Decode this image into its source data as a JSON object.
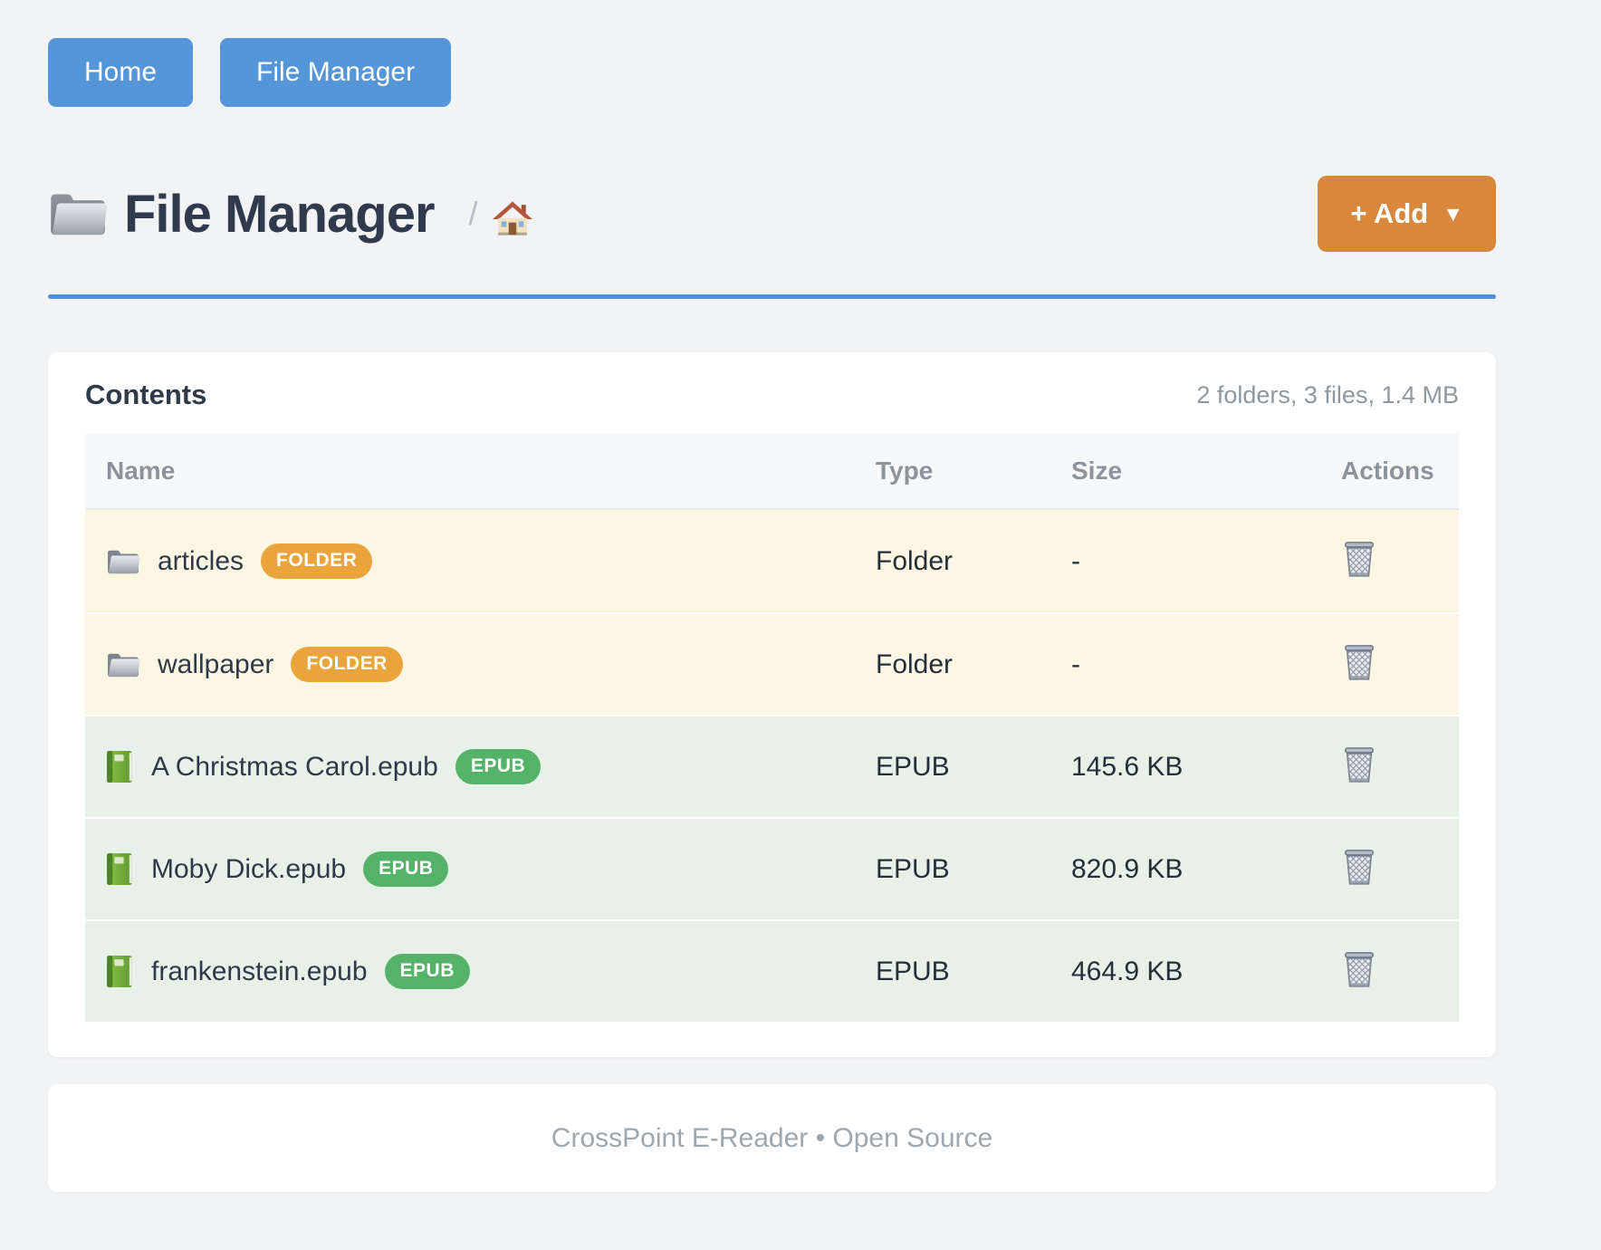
{
  "nav": {
    "buttons": [
      {
        "label": "Home"
      },
      {
        "label": "File Manager"
      }
    ]
  },
  "header": {
    "title": "File Manager",
    "breadcrumb_separator": "/",
    "add_button_label": "+ Add",
    "add_button_caret": "▼"
  },
  "panel": {
    "title": "Contents",
    "summary": "2 folders, 3 files, 1.4 MB"
  },
  "table": {
    "columns": [
      "Name",
      "Type",
      "Size",
      "Actions"
    ],
    "rows": [
      {
        "kind": "folder",
        "name": "articles",
        "badge": "FOLDER",
        "type": "Folder",
        "size": "-"
      },
      {
        "kind": "folder",
        "name": "wallpaper",
        "badge": "FOLDER",
        "type": "Folder",
        "size": "-"
      },
      {
        "kind": "epub",
        "name": "A Christmas Carol.epub",
        "badge": "EPUB",
        "type": "EPUB",
        "size": "145.6 KB"
      },
      {
        "kind": "epub",
        "name": "Moby Dick.epub",
        "badge": "EPUB",
        "type": "EPUB",
        "size": "820.9 KB"
      },
      {
        "kind": "epub",
        "name": "frankenstein.epub",
        "badge": "EPUB",
        "type": "EPUB",
        "size": "464.9 KB"
      }
    ]
  },
  "footer": {
    "text": "CrossPoint E-Reader • Open Source"
  },
  "icons": {
    "title": "folder-icon",
    "breadcrumb": "house-icon",
    "folder_row": "folder-icon",
    "epub_row": "book-icon",
    "action": "trash-icon",
    "add_caret": "caret-down-icon"
  },
  "colors": {
    "accent_blue": "#4e92d4",
    "button_blue": "#5596d8",
    "add_orange": "#d9873a",
    "badge_orange": "#e9a43c",
    "badge_green": "#55b269",
    "row_folder_bg": "#fdf6e2",
    "row_epub_bg": "#e8f1e8",
    "heading_dark": "#2f3b4c"
  }
}
